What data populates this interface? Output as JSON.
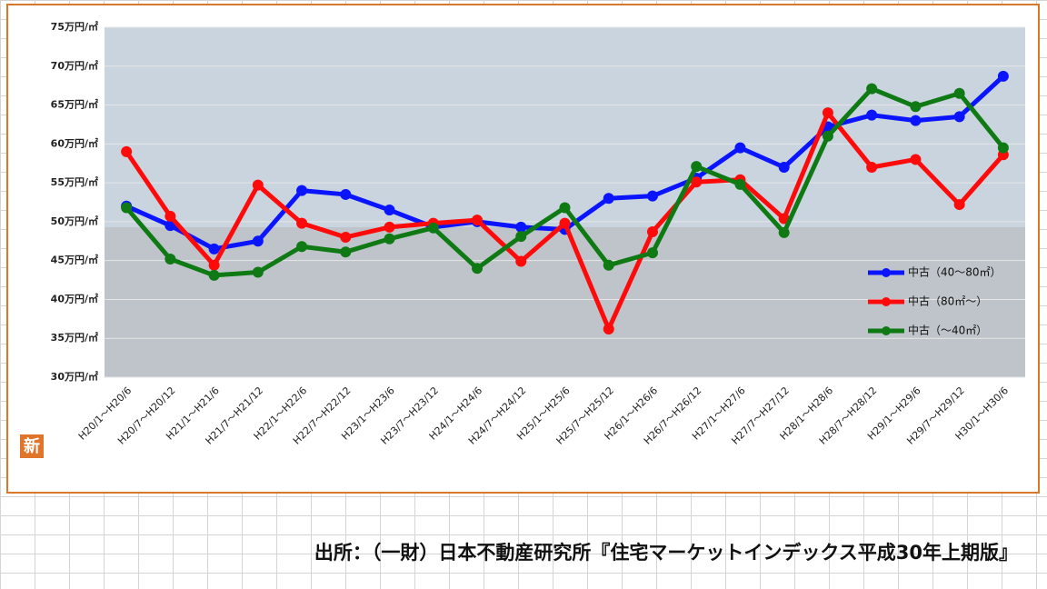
{
  "chart_data": {
    "type": "line",
    "categories": [
      "H20/1～H20/6",
      "H20/7～H20/12",
      "H21/1～H21/6",
      "H21/7～H21/12",
      "H22/1～H22/6",
      "H22/7～H22/12",
      "H23/1～H23/6",
      "H23/7～H23/12",
      "H24/1～H24/6",
      "H24/7～H24/12",
      "H25/1～H25/6",
      "H25/7～H25/12",
      "H26/1～H26/6",
      "H26/7～H26/12",
      "H27/1～H27/6",
      "H27/7～H27/12",
      "H28/1～H28/6",
      "H28/7～H28/12",
      "H29/1～H29/6",
      "H29/7～H29/12",
      "H30/1～H30/6"
    ],
    "series": [
      {
        "name": "中古（40～80㎡）",
        "color": "#0a14ff",
        "values": [
          52,
          49.5,
          46.5,
          47.5,
          54,
          53.5,
          51.5,
          49.3,
          50,
          49.3,
          49,
          53,
          53.3,
          55.6,
          59.5,
          57,
          62.2,
          63.7,
          63,
          63.5,
          68.7
        ]
      },
      {
        "name": "中古（80㎡～）",
        "color": "#ff0a0a",
        "values": [
          59,
          50.7,
          44.4,
          54.7,
          49.8,
          48,
          49.3,
          49.8,
          50.2,
          44.9,
          49.8,
          36.2,
          48.7,
          55.1,
          55.4,
          50.4,
          64,
          57,
          58,
          52.2,
          58.6
        ]
      },
      {
        "name": "中古（～40㎡）",
        "color": "#0f7a14",
        "values": [
          51.8,
          45.2,
          43.1,
          43.5,
          46.8,
          46.1,
          47.8,
          49.2,
          44,
          48.1,
          51.8,
          44.4,
          46,
          57.1,
          54.8,
          48.6,
          61,
          67.1,
          64.8,
          66.5,
          59.5
        ]
      }
    ],
    "ylim": [
      30,
      75
    ],
    "yticks": [
      {
        "value": 30,
        "label": "30万円/㎡"
      },
      {
        "value": 35,
        "label": "35万円/㎡"
      },
      {
        "value": 40,
        "label": "40万円/㎡"
      },
      {
        "value": 45,
        "label": "45万円/㎡"
      },
      {
        "value": 50,
        "label": "50万円/㎡"
      },
      {
        "value": 55,
        "label": "55万円/㎡"
      },
      {
        "value": 60,
        "label": "60万円/㎡"
      },
      {
        "value": 65,
        "label": "65万円/㎡"
      },
      {
        "value": 70,
        "label": "70万円/㎡"
      },
      {
        "value": 75,
        "label": "75万円/㎡"
      }
    ],
    "grid": true,
    "legend": "right"
  },
  "badge": "新",
  "source": "出所：（一財）日本不動産研究所『住宅マーケットインデックス平成30年上期版』"
}
